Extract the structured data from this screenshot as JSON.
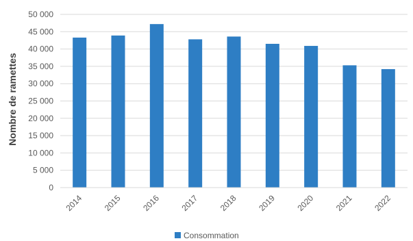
{
  "chart_data": {
    "type": "bar",
    "categories": [
      "2014",
      "2015",
      "2016",
      "2017",
      "2018",
      "2019",
      "2020",
      "2021",
      "2022"
    ],
    "series": [
      {
        "name": "Consommation",
        "values": [
          43300,
          43900,
          47200,
          42800,
          43600,
          41500,
          40900,
          35300,
          34200
        ],
        "color": "#2E7EC4"
      }
    ],
    "ylabel": "Nombre de ramettes",
    "xlabel": "",
    "ylim": [
      0,
      50000
    ],
    "yticks": [
      0,
      5000,
      10000,
      15000,
      20000,
      25000,
      30000,
      35000,
      40000,
      45000,
      50000
    ],
    "ytick_labels": [
      "0",
      "5 000",
      "10 000",
      "15 000",
      "20 000",
      "25 000",
      "30 000",
      "35 000",
      "40 000",
      "45 000",
      "50 000"
    ],
    "grid": true,
    "legend_position": "bottom"
  }
}
